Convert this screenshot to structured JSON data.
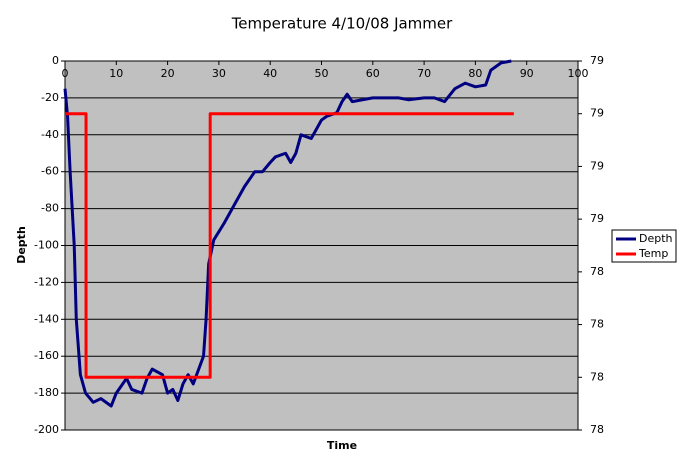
{
  "chart_data": {
    "type": "line",
    "title": "Temperature 4/10/08 Jammer",
    "x_label": "Time",
    "y_label": "Depth",
    "xlim": [
      0,
      100
    ],
    "xticks": [
      0,
      10,
      20,
      30,
      40,
      50,
      60,
      70,
      80,
      90,
      100
    ],
    "ylim": [
      -200,
      0
    ],
    "yticks": [
      0,
      -20,
      -40,
      -60,
      -80,
      -100,
      -120,
      -140,
      -160,
      -180,
      -200
    ],
    "y2lim": [
      77.8,
      79.2
    ],
    "y2ticks": [
      {
        "value": 79.2,
        "label": "79"
      },
      {
        "value": 79.0,
        "label": "79"
      },
      {
        "value": 78.8,
        "label": "79"
      },
      {
        "value": 78.6,
        "label": "79"
      },
      {
        "value": 78.4,
        "label": "78"
      },
      {
        "value": 78.2,
        "label": "78"
      },
      {
        "value": 78.0,
        "label": "78"
      },
      {
        "value": 77.8,
        "label": "78"
      }
    ],
    "grid": true,
    "legend": "right",
    "series": [
      {
        "name": "Depth",
        "color": "#000080",
        "x": [
          0,
          0.5,
          1,
          1.8,
          2.2,
          3,
          4,
          5.5,
          7,
          9,
          10,
          12,
          13,
          15,
          16,
          17,
          19,
          20,
          21,
          22,
          23,
          24,
          25,
          27,
          27.5,
          28,
          29,
          31,
          33,
          35,
          37,
          38.5,
          40,
          41,
          43,
          44,
          45,
          46,
          48,
          50,
          51,
          53,
          54,
          55,
          56,
          60,
          65,
          67,
          70,
          72,
          74,
          76,
          78,
          80,
          82,
          83,
          85,
          87
        ],
        "values": [
          -15,
          -30,
          -60,
          -100,
          -140,
          -170,
          -180,
          -185,
          -183,
          -187,
          -180,
          -172,
          -178,
          -180,
          -172,
          -167,
          -170,
          -180,
          -178,
          -184,
          -175,
          -170,
          -175,
          -160,
          -140,
          -110,
          -97,
          -88,
          -78,
          -68,
          -60,
          -60,
          -55,
          -52,
          -50,
          -55,
          -50,
          -40,
          -42,
          -32,
          -30,
          -28,
          -22,
          -18,
          -22,
          -20,
          -20,
          -21,
          -20,
          -20,
          -22,
          -15,
          -12,
          -14,
          -13,
          -5,
          -1,
          0
        ]
      },
      {
        "name": "Temp",
        "color": "#ff0000",
        "axis": "y2",
        "x": [
          0,
          4.1,
          4.1,
          28.3,
          28.3,
          87.5
        ],
        "values": [
          79,
          79,
          78,
          78,
          79,
          79
        ]
      }
    ]
  }
}
